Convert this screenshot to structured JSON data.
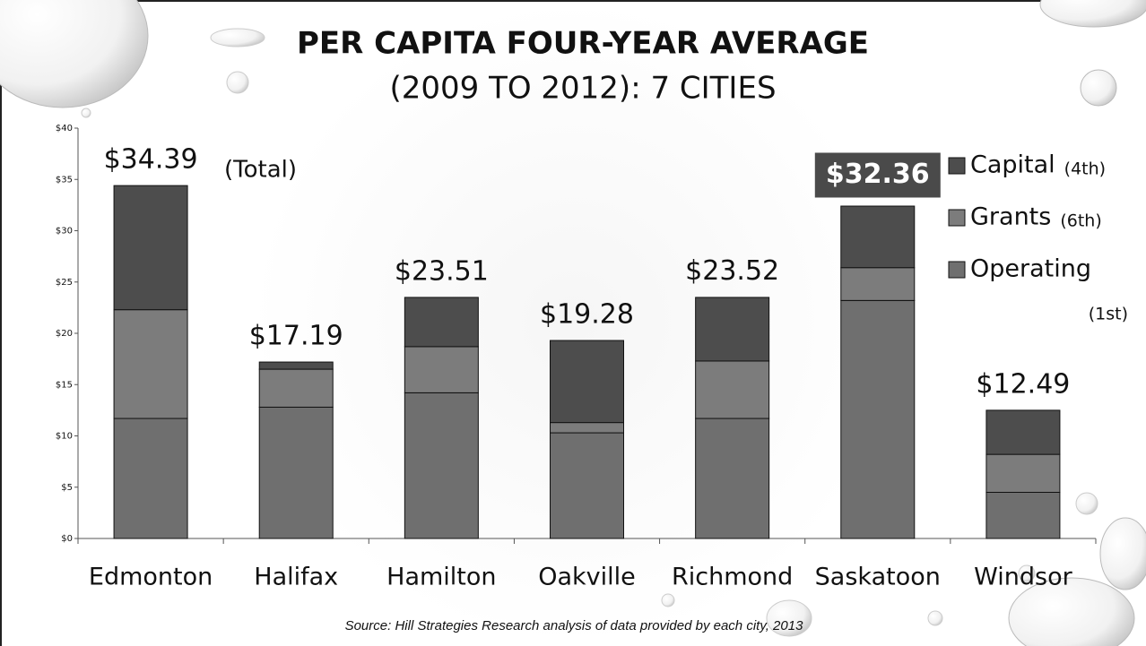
{
  "chart_data": {
    "type": "stacked_bar",
    "title": "PER CAPITA FOUR-YEAR AVERAGE",
    "subtitle": "(2009 TO 2012): 7 CITIES",
    "categories": [
      "Edmonton",
      "Halifax",
      "Hamilton",
      "Oakville",
      "Richmond",
      "Saskatoon",
      "Windsor"
    ],
    "series": [
      {
        "name": "Operating",
        "rank": "(1st)",
        "color": "#6f6f6f",
        "values": [
          11.7,
          12.8,
          14.2,
          10.3,
          11.7,
          23.2,
          4.5
        ]
      },
      {
        "name": "Grants",
        "rank": "(6th)",
        "color": "#7c7c7c",
        "values": [
          10.6,
          3.7,
          4.5,
          1.0,
          5.6,
          3.2,
          3.7
        ]
      },
      {
        "name": "Capital",
        "rank": "(4th)",
        "color": "#4d4d4d",
        "values": [
          12.1,
          0.7,
          4.8,
          8.0,
          6.2,
          6.0,
          4.3
        ]
      }
    ],
    "totals": [
      34.39,
      17.19,
      23.51,
      19.28,
      23.52,
      32.36,
      12.49
    ],
    "total_labels": [
      "$34.39",
      "$17.19",
      "$23.51",
      "$19.28",
      "$23.52",
      "$32.36",
      "$12.49"
    ],
    "boxed_totals": [
      false,
      false,
      false,
      false,
      false,
      true,
      false
    ],
    "total_note": "(Total)",
    "ylim": [
      0,
      40
    ],
    "yticks": [
      {
        "value": 0,
        "label": "$0"
      },
      {
        "value": 5,
        "label": "$5"
      },
      {
        "value": 10,
        "label": "$10"
      },
      {
        "value": 15,
        "label": "$15"
      },
      {
        "value": 20,
        "label": "$20"
      },
      {
        "value": 25,
        "label": "$25"
      },
      {
        "value": 30,
        "label": "$30"
      },
      {
        "value": 35,
        "label": "$35"
      },
      {
        "value": 40,
        "label": "$40"
      }
    ],
    "source": "Source: Hill Strategies Research analysis of data provided by each city, 2013"
  }
}
